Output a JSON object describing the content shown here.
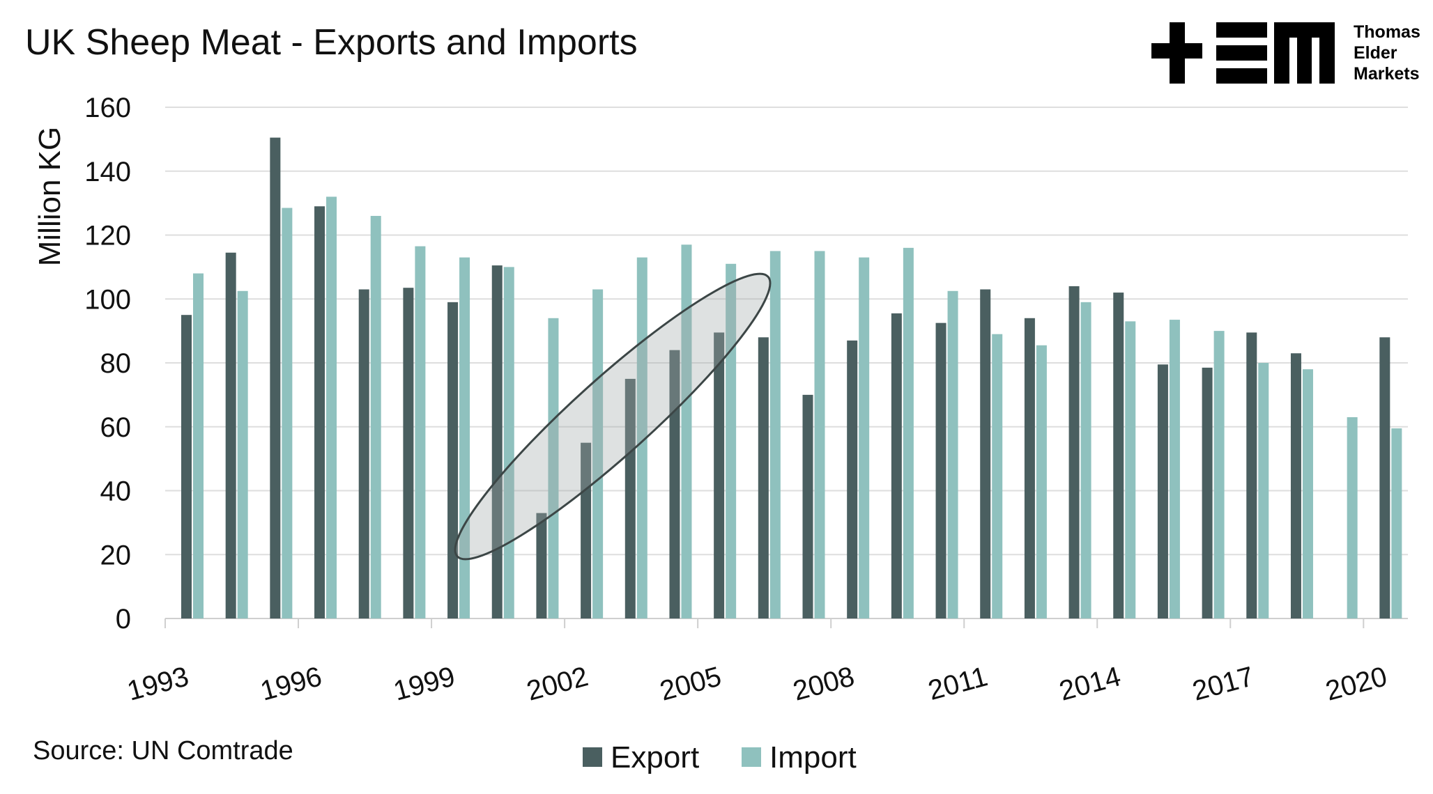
{
  "chart_data": {
    "type": "bar",
    "title": "UK Sheep Meat - Exports and Imports",
    "ylabel": "Million KG",
    "xlabel": "",
    "ylim": [
      0,
      160
    ],
    "yticks": [
      "0",
      "20",
      "40",
      "60",
      "80",
      "100",
      "120",
      "140",
      "160"
    ],
    "grid": true,
    "legend_placement": "bottom",
    "categories": [
      1993,
      1994,
      1995,
      1996,
      1997,
      1998,
      1999,
      2000,
      2001,
      2002,
      2003,
      2004,
      2005,
      2006,
      2007,
      2008,
      2009,
      2010,
      2011,
      2012,
      2013,
      2014,
      2015,
      2016,
      2017,
      2018,
      2019,
      2020
    ],
    "xtick_labels": [
      "1993",
      "1996",
      "1999",
      "2002",
      "2005",
      "2008",
      "2011",
      "2014",
      "2017",
      "2020"
    ],
    "series": [
      {
        "name": "Export",
        "color": "#4a5f60",
        "values": [
          95,
          114.5,
          150.5,
          129,
          103,
          103.5,
          99,
          110.5,
          33,
          55,
          75,
          84,
          89.5,
          88,
          70,
          87,
          95.5,
          92.5,
          103,
          94,
          104,
          102,
          79.5,
          78.5,
          89.5,
          83,
          0,
          88
        ]
      },
      {
        "name": "Import",
        "color": "#8fc1be",
        "values": [
          108,
          102.5,
          128.5,
          132,
          126,
          116.5,
          113,
          110,
          94,
          103,
          113,
          117,
          111,
          115,
          115,
          113,
          116,
          102.5,
          89,
          85.5,
          99,
          93,
          93.5,
          90,
          80,
          78,
          63,
          59.5
        ]
      }
    ],
    "source": "Source: UN Comtrade"
  },
  "logo": {
    "text": "Thomas Elder Markets",
    "lines": [
      "Thomas",
      "Elder",
      "Markets"
    ]
  }
}
